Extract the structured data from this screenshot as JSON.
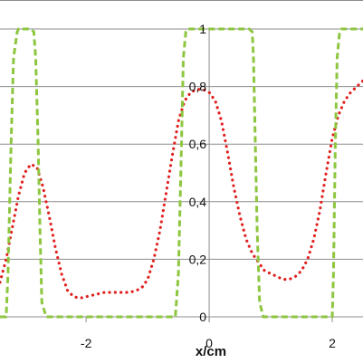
{
  "chart_data": {
    "type": "line",
    "title": "",
    "xlabel": "x/cm",
    "ylabel": "",
    "xlim": [
      -3.4,
      2.5
    ],
    "ylim": [
      0,
      1
    ],
    "x_ticks": [
      -2,
      0,
      2
    ],
    "x_tick_labels": [
      "-2",
      "0",
      "2"
    ],
    "y_ticks": [
      0,
      0.2,
      0.4,
      0.6,
      0.8,
      1
    ],
    "y_tick_labels": [
      "0",
      "0,2",
      "0,4",
      "0,6",
      "0,8",
      "1"
    ],
    "grid": "horizontal",
    "legend": "none",
    "series": [
      {
        "style": "dotted",
        "color": "#e0201e",
        "x": [
          -3.4,
          -3.3,
          -3.2,
          -3.1,
          -3.0,
          -2.9,
          -2.8,
          -2.7,
          -2.6,
          -2.5,
          -2.4,
          -2.3,
          -2.2,
          -2.1,
          -2.0,
          -1.9,
          -1.8,
          -1.7,
          -1.6,
          -1.5,
          -1.4,
          -1.3,
          -1.2,
          -1.1,
          -1.0,
          -0.9,
          -0.8,
          -0.7,
          -0.6,
          -0.5,
          -0.4,
          -0.3,
          -0.2,
          -0.1,
          0.0,
          0.1,
          0.2,
          0.3,
          0.4,
          0.5,
          0.6,
          0.7,
          0.8,
          0.9,
          1.0,
          1.1,
          1.2,
          1.3,
          1.4,
          1.5,
          1.6,
          1.7,
          1.8,
          1.9,
          2.0,
          2.1,
          2.2,
          2.3,
          2.4,
          2.5
        ],
        "y": [
          0.12,
          0.2,
          0.31,
          0.42,
          0.5,
          0.53,
          0.52,
          0.45,
          0.35,
          0.24,
          0.15,
          0.09,
          0.07,
          0.065,
          0.07,
          0.075,
          0.08,
          0.085,
          0.085,
          0.085,
          0.085,
          0.085,
          0.09,
          0.1,
          0.13,
          0.2,
          0.3,
          0.43,
          0.56,
          0.68,
          0.75,
          0.78,
          0.79,
          0.79,
          0.78,
          0.75,
          0.68,
          0.57,
          0.45,
          0.35,
          0.27,
          0.22,
          0.19,
          0.16,
          0.15,
          0.14,
          0.13,
          0.13,
          0.14,
          0.16,
          0.2,
          0.27,
          0.37,
          0.5,
          0.62,
          0.7,
          0.75,
          0.78,
          0.8,
          0.82
        ]
      },
      {
        "style": "dashed",
        "color": "#8dc63f",
        "x": [
          -3.4,
          -3.3,
          -3.27,
          -3.22,
          -3.18,
          -3.12,
          -3.1,
          -2.9,
          -2.85,
          -2.82,
          -2.78,
          -2.75,
          -2.72,
          -2.65,
          -0.62,
          -0.55,
          -0.5,
          -0.45,
          -0.42,
          -0.38,
          -0.35,
          0.65,
          0.7,
          0.72,
          0.75,
          0.78,
          0.82,
          0.88,
          1.95,
          2.0,
          2.02,
          2.05,
          2.08,
          2.12,
          2.15,
          2.5
        ],
        "y": [
          0,
          0,
          0.15,
          0.6,
          0.9,
          0.99,
          1,
          1,
          0.99,
          0.9,
          0.6,
          0.3,
          0.05,
          0,
          0,
          0,
          0.15,
          0.6,
          0.9,
          0.99,
          1,
          1,
          0.99,
          0.9,
          0.6,
          0.3,
          0.05,
          0,
          0,
          0,
          0.15,
          0.6,
          0.9,
          0.99,
          1,
          1
        ]
      }
    ]
  }
}
